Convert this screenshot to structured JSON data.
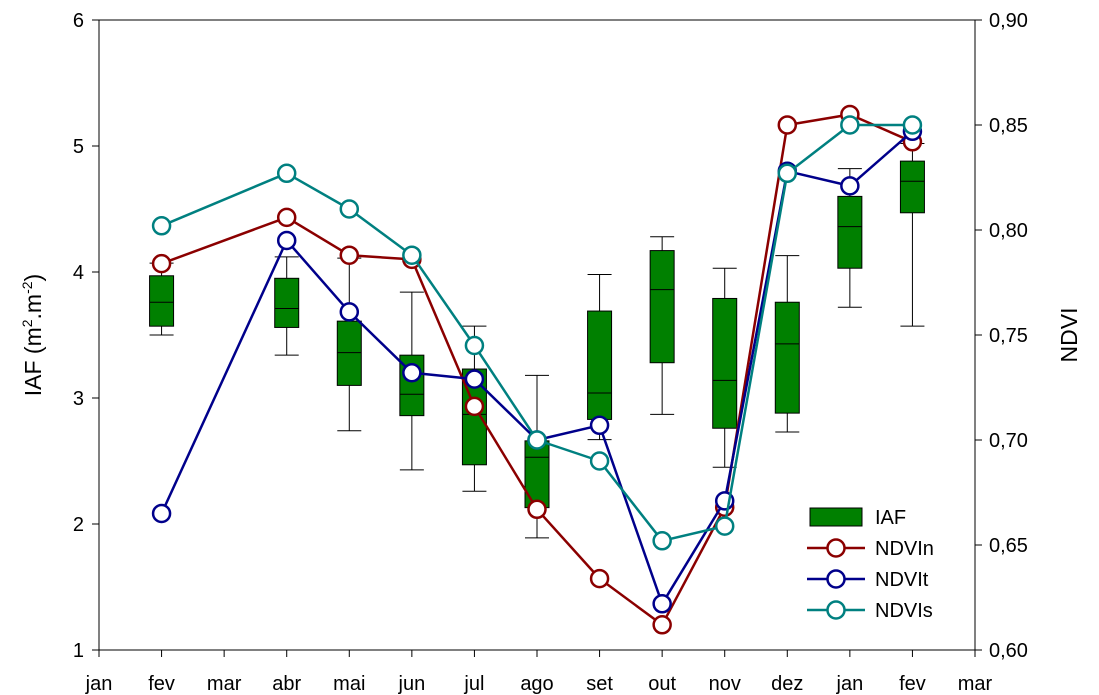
{
  "chart_data": {
    "type": "box+line",
    "x_tick_labels": [
      "jan",
      "fev",
      "mar",
      "abr",
      "mai",
      "jun",
      "jul",
      "ago",
      "set",
      "out",
      "nov",
      "dez",
      "jan",
      "fev",
      "mar"
    ],
    "y_left": {
      "label_main": "IAF (m",
      "label_sup1": "2",
      "label_mid": ".m",
      "label_sup2": "-2",
      "label_end": ")",
      "range": [
        1,
        6
      ],
      "ticks": [
        "1",
        "2",
        "3",
        "4",
        "5",
        "6"
      ]
    },
    "y_right": {
      "label": "NDVI",
      "range": [
        0.6,
        0.9
      ],
      "ticks": [
        "0,60",
        "0,65",
        "0,70",
        "0,75",
        "0,80",
        "0,85",
        "0,90"
      ]
    },
    "boxes": {
      "name": "IAF",
      "color": "#008000",
      "items": [
        {
          "x": 1,
          "whisker_low": 3.5,
          "q1": 3.57,
          "median": 3.76,
          "q3": 3.97,
          "whisker_high": 4.07
        },
        {
          "x": 3,
          "whisker_low": 3.34,
          "q1": 3.56,
          "median": 3.71,
          "q3": 3.95,
          "whisker_high": 4.12
        },
        {
          "x": 4,
          "whisker_low": 2.74,
          "q1": 3.1,
          "median": 3.36,
          "q3": 3.61,
          "whisker_high": 4.11
        },
        {
          "x": 5,
          "whisker_low": 2.43,
          "q1": 2.86,
          "median": 3.03,
          "q3": 3.34,
          "whisker_high": 3.84
        },
        {
          "x": 6,
          "whisker_low": 2.26,
          "q1": 2.47,
          "median": 2.87,
          "q3": 3.23,
          "whisker_high": 3.57
        },
        {
          "x": 7,
          "whisker_low": 1.89,
          "q1": 2.13,
          "median": 2.53,
          "q3": 2.66,
          "whisker_high": 3.18
        },
        {
          "x": 8,
          "whisker_low": 2.67,
          "q1": 2.83,
          "median": 3.04,
          "q3": 3.69,
          "whisker_high": 3.98
        },
        {
          "x": 9,
          "whisker_low": 2.87,
          "q1": 3.28,
          "median": 3.86,
          "q3": 4.17,
          "whisker_high": 4.28
        },
        {
          "x": 10,
          "whisker_low": 2.45,
          "q1": 2.76,
          "median": 3.14,
          "q3": 3.79,
          "whisker_high": 4.03
        },
        {
          "x": 11,
          "whisker_low": 2.73,
          "q1": 2.88,
          "median": 3.43,
          "q3": 3.76,
          "whisker_high": 4.13
        },
        {
          "x": 12,
          "whisker_low": 3.72,
          "q1": 4.03,
          "median": 4.36,
          "q3": 4.6,
          "whisker_high": 4.82
        },
        {
          "x": 13,
          "whisker_low": 3.57,
          "q1": 4.47,
          "median": 4.72,
          "q3": 4.88,
          "whisker_high": 5.02
        }
      ]
    },
    "series": [
      {
        "name": "NDVIn",
        "color": "#8b0000",
        "points": [
          [
            1,
            0.784
          ],
          [
            3,
            0.806
          ],
          [
            4,
            0.788
          ],
          [
            5,
            0.786
          ],
          [
            6,
            0.716
          ],
          [
            7,
            0.667
          ],
          [
            8,
            0.634
          ],
          [
            9,
            0.612
          ],
          [
            10,
            0.668
          ],
          [
            11,
            0.85
          ],
          [
            12,
            0.855
          ],
          [
            13,
            0.842
          ]
        ]
      },
      {
        "name": "NDVIt",
        "color": "#00008b",
        "points": [
          [
            1,
            0.665
          ],
          [
            3,
            0.795
          ],
          [
            4,
            0.761
          ],
          [
            5,
            0.732
          ],
          [
            6,
            0.729
          ],
          [
            7,
            0.7
          ],
          [
            8,
            0.707
          ],
          [
            9,
            0.622
          ],
          [
            10,
            0.671
          ],
          [
            11,
            0.828
          ],
          [
            12,
            0.821
          ],
          [
            13,
            0.847
          ]
        ]
      },
      {
        "name": "NDVIs",
        "color": "#008080",
        "points": [
          [
            1,
            0.802
          ],
          [
            3,
            0.827
          ],
          [
            4,
            0.81
          ],
          [
            5,
            0.788
          ],
          [
            6,
            0.745
          ],
          [
            7,
            0.7
          ],
          [
            8,
            0.69
          ],
          [
            9,
            0.652
          ],
          [
            10,
            0.659
          ],
          [
            11,
            0.827
          ],
          [
            12,
            0.85
          ],
          [
            13,
            0.85
          ]
        ]
      }
    ],
    "legend": {
      "position": "bottom-right",
      "entries": [
        {
          "label": "IAF",
          "kind": "box",
          "color": "#008000"
        },
        {
          "label": "NDVIn",
          "kind": "marker",
          "color": "#8b0000"
        },
        {
          "label": "NDVIt",
          "kind": "marker",
          "color": "#00008b"
        },
        {
          "label": "NDVIs",
          "kind": "marker",
          "color": "#008080"
        }
      ]
    }
  }
}
